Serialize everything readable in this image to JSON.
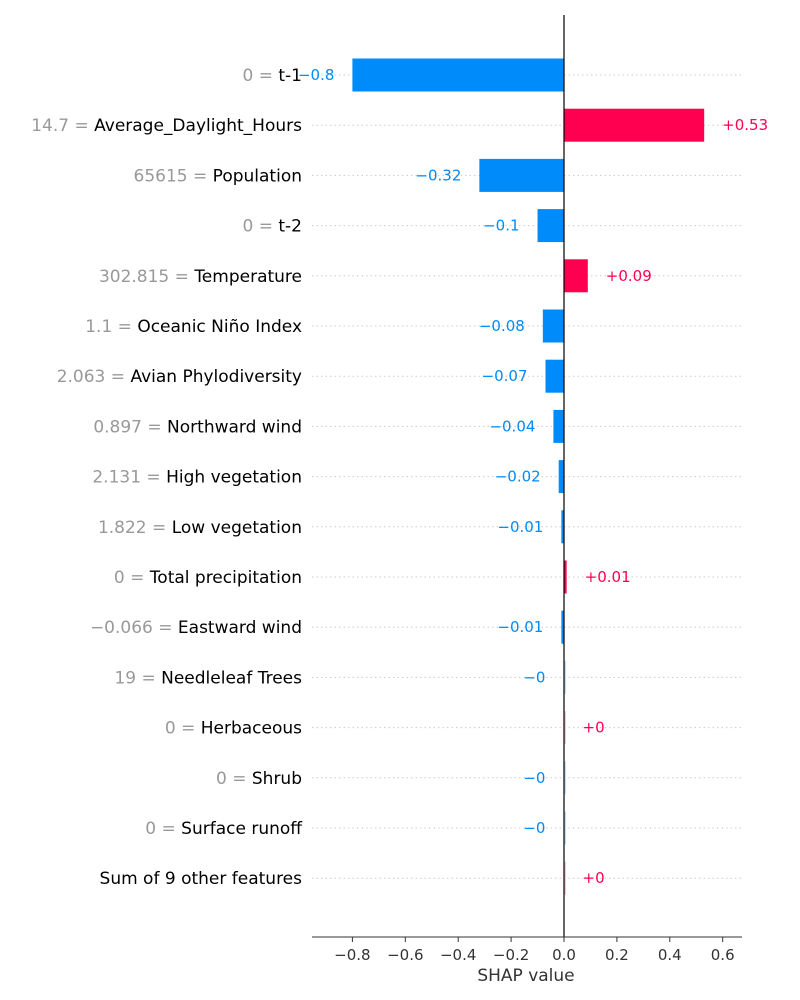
{
  "chart_data": {
    "type": "bar",
    "orientation": "horizontal",
    "xlabel": "SHAP value",
    "xlim": [
      -0.95,
      0.67
    ],
    "xticks": [
      -0.8,
      -0.6,
      -0.4,
      -0.2,
      0.0,
      0.2,
      0.4,
      0.6
    ],
    "xtick_labels": [
      "−0.8",
      "−0.6",
      "−0.4",
      "−0.2",
      "0.0",
      "0.2",
      "0.4",
      "0.6"
    ],
    "grid": "dotted horizontal row lines",
    "colors": {
      "positive": "#ff0051",
      "negative": "#008bfb",
      "axis": "#333333",
      "feature_value": "#999999"
    },
    "features": [
      {
        "value_label": "0",
        "name": "t-1",
        "shap": -0.8,
        "shap_label": "−0.8"
      },
      {
        "value_label": "14.7",
        "name": "Average_Daylight_Hours",
        "shap": 0.53,
        "shap_label": "+0.53"
      },
      {
        "value_label": "65615",
        "name": "Population",
        "shap": -0.32,
        "shap_label": "−0.32"
      },
      {
        "value_label": "0",
        "name": "t-2",
        "shap": -0.1,
        "shap_label": "−0.1"
      },
      {
        "value_label": "302.815",
        "name": "Temperature",
        "shap": 0.09,
        "shap_label": "+0.09"
      },
      {
        "value_label": "1.1",
        "name": "Oceanic Niño Index",
        "shap": -0.08,
        "shap_label": "−0.08"
      },
      {
        "value_label": "2.063",
        "name": "Avian Phylodiversity",
        "shap": -0.07,
        "shap_label": "−0.07"
      },
      {
        "value_label": "0.897",
        "name": "Northward wind",
        "shap": -0.04,
        "shap_label": "−0.04"
      },
      {
        "value_label": "2.131",
        "name": "High vegetation",
        "shap": -0.02,
        "shap_label": "−0.02"
      },
      {
        "value_label": "1.822",
        "name": "Low vegetation",
        "shap": -0.01,
        "shap_label": "−0.01"
      },
      {
        "value_label": "0",
        "name": "Total precipitation",
        "shap": 0.01,
        "shap_label": "+0.01"
      },
      {
        "value_label": "−0.066",
        "name": "Eastward wind",
        "shap": -0.01,
        "shap_label": "−0.01"
      },
      {
        "value_label": "19",
        "name": "Needleleaf Trees",
        "shap": -0.002,
        "shap_label": "−0"
      },
      {
        "value_label": "0",
        "name": "Herbaceous",
        "shap": 0.002,
        "shap_label": "+0"
      },
      {
        "value_label": "0",
        "name": "Shrub",
        "shap": -0.002,
        "shap_label": "−0"
      },
      {
        "value_label": "0",
        "name": "Surface runoff",
        "shap": -0.002,
        "shap_label": "−0"
      },
      {
        "value_label": "",
        "name": "Sum of 9 other features",
        "shap": 0.002,
        "shap_label": "+0"
      }
    ]
  }
}
